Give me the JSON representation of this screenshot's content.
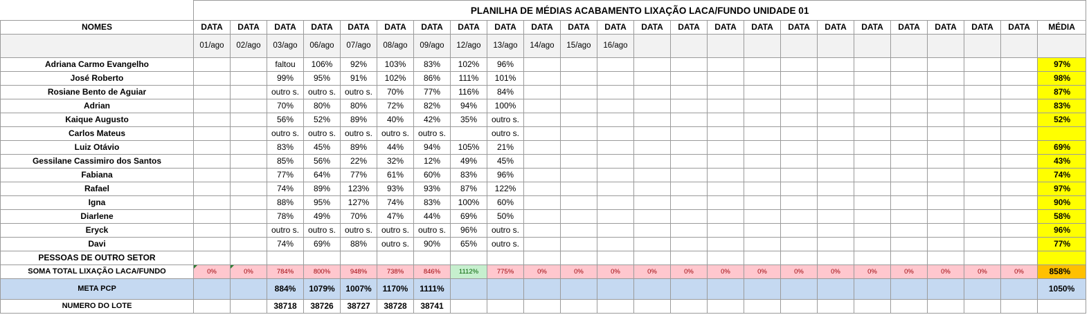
{
  "title": "PLANILHA DE MÉDIAS ACABAMENTO LIXAÇÃO LACA/FUNDO UNIDADE 01",
  "header": {
    "names_label": "NOMES",
    "data_label": "DATA",
    "media_label": "MÉDIA",
    "dates": [
      "01/ago",
      "02/ago",
      "03/ago",
      "06/ago",
      "07/ago",
      "08/ago",
      "09/ago",
      "12/ago",
      "13/ago",
      "14/ago",
      "15/ago",
      "16/ago",
      "",
      "",
      "",
      "",
      "",
      "",
      "",
      "",
      "",
      "",
      ""
    ]
  },
  "rows": [
    {
      "name": "Adriana Carmo Evangelho",
      "values": [
        "",
        "",
        "faltou",
        "106%",
        "92%",
        "103%",
        "83%",
        "102%",
        "96%"
      ],
      "media": "97%"
    },
    {
      "name": "José Roberto",
      "values": [
        "",
        "",
        "99%",
        "95%",
        "91%",
        "102%",
        "86%",
        "111%",
        "101%"
      ],
      "media": "98%"
    },
    {
      "name": "Rosiane Bento de Aguiar",
      "values": [
        "",
        "",
        "outro s.",
        "outro s.",
        "outro s.",
        "70%",
        "77%",
        "116%",
        "84%"
      ],
      "media": "87%"
    },
    {
      "name": "Adrian",
      "values": [
        "",
        "",
        "70%",
        "80%",
        "80%",
        "72%",
        "82%",
        "94%",
        "100%"
      ],
      "media": "83%"
    },
    {
      "name": "Kaique Augusto",
      "values": [
        "",
        "",
        "56%",
        "52%",
        "89%",
        "40%",
        "42%",
        "35%",
        "outro s."
      ],
      "media": "52%"
    },
    {
      "name": "Carlos Mateus",
      "values": [
        "",
        "",
        "outro s.",
        "outro s.",
        "outro s.",
        "outro s.",
        "outro s.",
        "",
        "outro s."
      ],
      "media": ""
    },
    {
      "name": "Luiz Otávio",
      "values": [
        "",
        "",
        "83%",
        "45%",
        "89%",
        "44%",
        "94%",
        "105%",
        "21%"
      ],
      "media": "69%"
    },
    {
      "name": "Gessilane Cassimiro dos Santos",
      "values": [
        "",
        "",
        "85%",
        "56%",
        "22%",
        "32%",
        "12%",
        "49%",
        "45%"
      ],
      "media": "43%"
    },
    {
      "name": "Fabiana",
      "values": [
        "",
        "",
        "77%",
        "64%",
        "77%",
        "61%",
        "60%",
        "83%",
        "96%"
      ],
      "media": "74%"
    },
    {
      "name": "Rafael",
      "values": [
        "",
        "",
        "74%",
        "89%",
        "123%",
        "93%",
        "93%",
        "87%",
        "122%"
      ],
      "media": "97%"
    },
    {
      "name": "Igna",
      "values": [
        "",
        "",
        "88%",
        "95%",
        "127%",
        "74%",
        "83%",
        "100%",
        "60%"
      ],
      "media": "90%"
    },
    {
      "name": "Diarlene",
      "values": [
        "",
        "",
        "78%",
        "49%",
        "70%",
        "47%",
        "44%",
        "69%",
        "50%"
      ],
      "media": "58%"
    },
    {
      "name": "Eryck",
      "values": [
        "",
        "",
        "outro s.",
        "outro s.",
        "outro s.",
        "outro s.",
        "outro s.",
        "96%",
        "outro s."
      ],
      "media": "96%"
    },
    {
      "name": "Davi",
      "values": [
        "",
        "",
        "74%",
        "69%",
        "88%",
        "outro s.",
        "90%",
        "65%",
        "outro s."
      ],
      "media": "77%"
    },
    {
      "name": "PESSOAS DE OUTRO SETOR",
      "values": [],
      "media": ""
    }
  ],
  "soma": {
    "label": "SOMA TOTAL LIXAÇÃO LACA/FUNDO",
    "values": [
      "0%",
      "0%",
      "784%",
      "800%",
      "948%",
      "738%",
      "846%",
      "1112%",
      "775%",
      "0%",
      "0%",
      "0%",
      "0%",
      "0%",
      "0%",
      "0%",
      "0%",
      "0%",
      "0%",
      "0%",
      "0%",
      "0%",
      "0%"
    ],
    "total": "858%"
  },
  "meta": {
    "label": "META PCP",
    "values": [
      "",
      "",
      "884%",
      "1079%",
      "1007%",
      "1170%",
      "1111%"
    ],
    "total": "1050%"
  },
  "lote": {
    "label": "NUMERO DO LOTE",
    "values": [
      "",
      "",
      "38718",
      "38726",
      "38727",
      "38728",
      "38741"
    ],
    "total": ""
  },
  "colors": {
    "avg_fill": "#ffff00",
    "total_fill": "#ffc000",
    "bad_fill": "#ffc7ce",
    "bad_text": "#9c0006",
    "good_fill": "#c6efce",
    "good_text": "#006100",
    "meta_fill": "#c5d9f1",
    "date_row_fill": "#f2f2f2"
  }
}
